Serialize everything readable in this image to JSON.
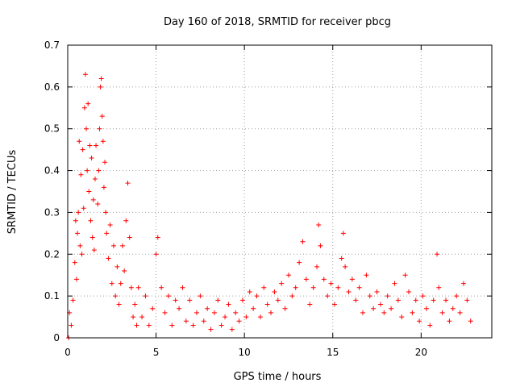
{
  "chart_data": {
    "type": "scatter",
    "title": "Day 160 of 2018, SRMTID for receiver pbcg",
    "xlabel": "GPS time / hours",
    "ylabel": "SRMTID / TECUs",
    "xlim": [
      0,
      24
    ],
    "ylim": [
      0,
      0.7
    ],
    "xticks": [
      0,
      5,
      10,
      15,
      20
    ],
    "xtick_labels": [
      "0",
      "5",
      "10",
      "15",
      "20"
    ],
    "yticks": [
      0,
      0.1,
      0.2,
      0.3,
      0.4,
      0.5,
      0.6,
      0.7
    ],
    "ytick_labels": [
      "0",
      "0.1",
      "0.2",
      "0.3",
      "0.4",
      "0.5",
      "0.6",
      "0.7"
    ],
    "grid": true,
    "marker": "plus",
    "color": "#ff0000",
    "series": [
      {
        "name": "SRMTID",
        "points": [
          [
            0.05,
            0.0
          ],
          [
            0.1,
            0.06
          ],
          [
            0.2,
            0.03
          ],
          [
            0.3,
            0.09
          ],
          [
            0.4,
            0.18
          ],
          [
            0.45,
            0.28
          ],
          [
            0.5,
            0.14
          ],
          [
            0.55,
            0.25
          ],
          [
            0.6,
            0.3
          ],
          [
            0.65,
            0.47
          ],
          [
            0.7,
            0.22
          ],
          [
            0.75,
            0.39
          ],
          [
            0.8,
            0.2
          ],
          [
            0.85,
            0.45
          ],
          [
            0.9,
            0.31
          ],
          [
            0.95,
            0.55
          ],
          [
            1.0,
            0.63
          ],
          [
            1.05,
            0.5
          ],
          [
            1.1,
            0.4
          ],
          [
            1.15,
            0.56
          ],
          [
            1.2,
            0.35
          ],
          [
            1.25,
            0.46
          ],
          [
            1.3,
            0.28
          ],
          [
            1.35,
            0.43
          ],
          [
            1.4,
            0.24
          ],
          [
            1.45,
            0.33
          ],
          [
            1.5,
            0.21
          ],
          [
            1.55,
            0.38
          ],
          [
            1.6,
            0.46
          ],
          [
            1.7,
            0.32
          ],
          [
            1.75,
            0.4
          ],
          [
            1.8,
            0.5
          ],
          [
            1.85,
            0.6
          ],
          [
            1.9,
            0.62
          ],
          [
            1.95,
            0.53
          ],
          [
            2.0,
            0.47
          ],
          [
            2.05,
            0.36
          ],
          [
            2.1,
            0.42
          ],
          [
            2.15,
            0.3
          ],
          [
            2.2,
            0.25
          ],
          [
            2.3,
            0.19
          ],
          [
            2.4,
            0.27
          ],
          [
            2.5,
            0.13
          ],
          [
            2.6,
            0.22
          ],
          [
            2.7,
            0.1
          ],
          [
            2.8,
            0.17
          ],
          [
            2.9,
            0.08
          ],
          [
            3.0,
            0.13
          ],
          [
            3.1,
            0.22
          ],
          [
            3.2,
            0.16
          ],
          [
            3.3,
            0.28
          ],
          [
            3.4,
            0.37
          ],
          [
            3.5,
            0.24
          ],
          [
            3.6,
            0.12
          ],
          [
            3.7,
            0.05
          ],
          [
            3.8,
            0.08
          ],
          [
            3.9,
            0.03
          ],
          [
            4.0,
            0.12
          ],
          [
            4.2,
            0.05
          ],
          [
            4.4,
            0.1
          ],
          [
            4.6,
            0.03
          ],
          [
            4.8,
            0.07
          ],
          [
            5.0,
            0.2
          ],
          [
            5.1,
            0.24
          ],
          [
            5.3,
            0.12
          ],
          [
            5.5,
            0.06
          ],
          [
            5.7,
            0.1
          ],
          [
            5.9,
            0.03
          ],
          [
            6.1,
            0.09
          ],
          [
            6.3,
            0.07
          ],
          [
            6.5,
            0.12
          ],
          [
            6.7,
            0.04
          ],
          [
            6.9,
            0.09
          ],
          [
            7.1,
            0.03
          ],
          [
            7.3,
            0.06
          ],
          [
            7.5,
            0.1
          ],
          [
            7.7,
            0.04
          ],
          [
            7.9,
            0.07
          ],
          [
            8.1,
            0.02
          ],
          [
            8.3,
            0.06
          ],
          [
            8.5,
            0.09
          ],
          [
            8.7,
            0.03
          ],
          [
            8.9,
            0.05
          ],
          [
            9.1,
            0.08
          ],
          [
            9.3,
            0.02
          ],
          [
            9.5,
            0.06
          ],
          [
            9.7,
            0.04
          ],
          [
            9.9,
            0.09
          ],
          [
            10.1,
            0.05
          ],
          [
            10.3,
            0.11
          ],
          [
            10.5,
            0.07
          ],
          [
            10.7,
            0.1
          ],
          [
            10.9,
            0.05
          ],
          [
            11.1,
            0.12
          ],
          [
            11.3,
            0.08
          ],
          [
            11.5,
            0.06
          ],
          [
            11.7,
            0.11
          ],
          [
            11.9,
            0.09
          ],
          [
            12.1,
            0.13
          ],
          [
            12.3,
            0.07
          ],
          [
            12.5,
            0.15
          ],
          [
            12.7,
            0.1
          ],
          [
            12.9,
            0.12
          ],
          [
            13.1,
            0.18
          ],
          [
            13.3,
            0.23
          ],
          [
            13.5,
            0.14
          ],
          [
            13.7,
            0.08
          ],
          [
            13.9,
            0.12
          ],
          [
            14.1,
            0.17
          ],
          [
            14.2,
            0.27
          ],
          [
            14.3,
            0.22
          ],
          [
            14.5,
            0.14
          ],
          [
            14.7,
            0.1
          ],
          [
            14.9,
            0.13
          ],
          [
            15.1,
            0.08
          ],
          [
            15.3,
            0.12
          ],
          [
            15.5,
            0.19
          ],
          [
            15.6,
            0.25
          ],
          [
            15.7,
            0.17
          ],
          [
            15.9,
            0.11
          ],
          [
            16.1,
            0.14
          ],
          [
            16.3,
            0.09
          ],
          [
            16.5,
            0.12
          ],
          [
            16.7,
            0.06
          ],
          [
            16.9,
            0.15
          ],
          [
            17.1,
            0.1
          ],
          [
            17.3,
            0.07
          ],
          [
            17.5,
            0.11
          ],
          [
            17.7,
            0.08
          ],
          [
            17.9,
            0.06
          ],
          [
            18.1,
            0.1
          ],
          [
            18.3,
            0.07
          ],
          [
            18.5,
            0.13
          ],
          [
            18.7,
            0.09
          ],
          [
            18.9,
            0.05
          ],
          [
            19.1,
            0.15
          ],
          [
            19.3,
            0.11
          ],
          [
            19.5,
            0.06
          ],
          [
            19.7,
            0.09
          ],
          [
            19.9,
            0.04
          ],
          [
            20.1,
            0.1
          ],
          [
            20.3,
            0.07
          ],
          [
            20.5,
            0.03
          ],
          [
            20.7,
            0.09
          ],
          [
            20.9,
            0.2
          ],
          [
            21.0,
            0.12
          ],
          [
            21.2,
            0.06
          ],
          [
            21.4,
            0.09
          ],
          [
            21.6,
            0.04
          ],
          [
            21.8,
            0.07
          ],
          [
            22.0,
            0.1
          ],
          [
            22.2,
            0.06
          ],
          [
            22.4,
            0.13
          ],
          [
            22.6,
            0.09
          ],
          [
            22.8,
            0.04
          ]
        ]
      }
    ]
  }
}
